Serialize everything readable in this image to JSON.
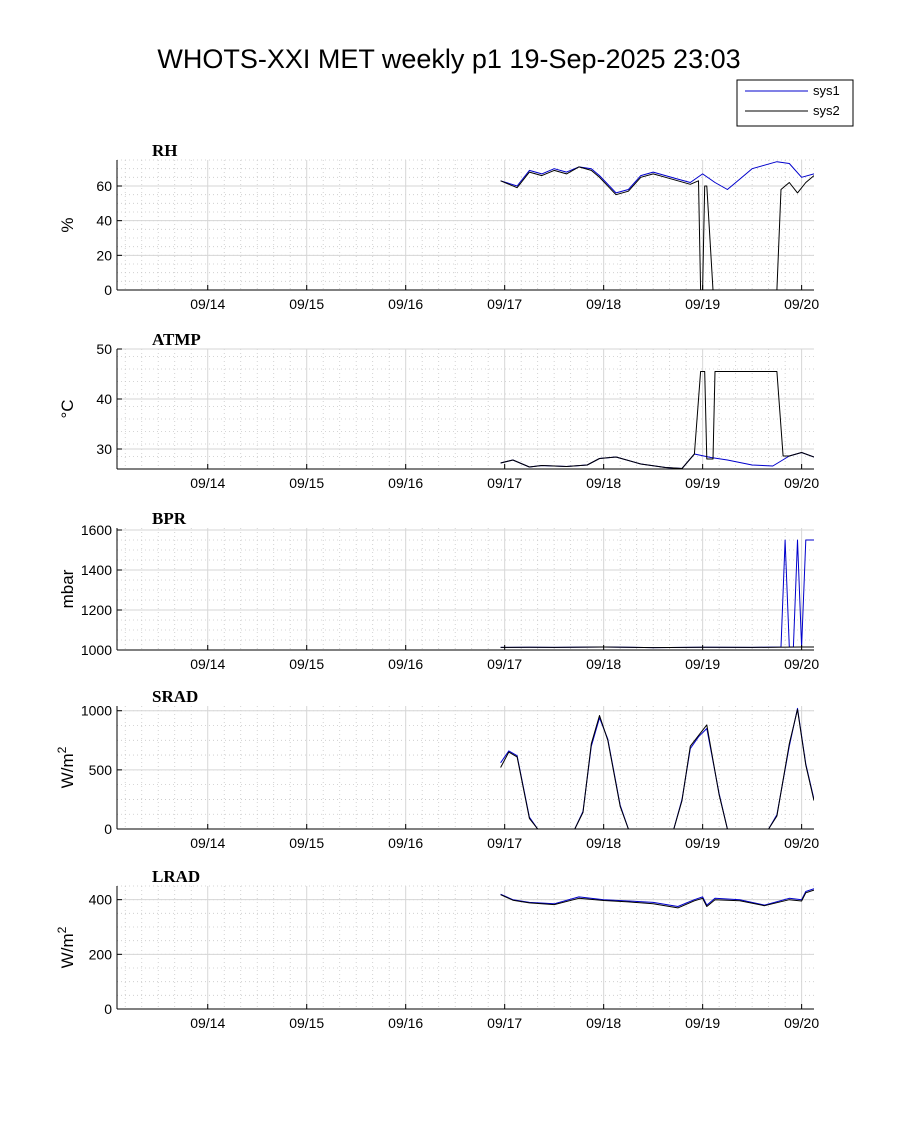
{
  "figure": {
    "title": "WHOTS-XXI MET weekly p1 19-Sep-2025 23:03",
    "legend": [
      {
        "name": "sys1",
        "color": "#0000cc"
      },
      {
        "name": "sys2",
        "color": "#000000"
      }
    ]
  },
  "chart_data": [
    {
      "type": "line",
      "title": "RH",
      "ylabel": "%",
      "ylabel_sup": "",
      "xlim": [
        "09/13 02:00",
        "09/20 03:00"
      ],
      "x_ticks": [
        "09/14",
        "09/15",
        "09/16",
        "09/17",
        "09/18",
        "09/19",
        "09/20"
      ],
      "ylim": [
        0,
        75
      ],
      "y_ticks": [
        0,
        20,
        40,
        60
      ],
      "grid": true,
      "legend_placement": "top-right",
      "series": [
        {
          "name": "sys1",
          "color": "#0000cc",
          "x": [
            "09/16 23:00",
            "09/17 03:00",
            "09/17 06:00",
            "09/17 09:00",
            "09/17 12:00",
            "09/17 15:00",
            "09/17 18:00",
            "09/17 21:00",
            "09/17 23:00",
            "09/18 03:00",
            "09/18 06:00",
            "09/18 09:00",
            "09/18 12:00",
            "09/18 15:00",
            "09/18 18:00",
            "09/18 21:00",
            "09/19 00:00",
            "09/19 03:00",
            "09/19 06:00",
            "09/19 09:00",
            "09/19 12:00",
            "09/19 15:00",
            "09/19 18:00",
            "09/19 21:00",
            "09/20 00:00",
            "09/20 03:00"
          ],
          "y": [
            63,
            60,
            69,
            67,
            70,
            68,
            71,
            70,
            66,
            56,
            58,
            66,
            68,
            66,
            64,
            62,
            67,
            62,
            58,
            64,
            70,
            72,
            74,
            73,
            65,
            67
          ]
        },
        {
          "name": "sys2",
          "color": "#000000",
          "x": [
            "09/16 23:00",
            "09/17 03:00",
            "09/17 06:00",
            "09/17 09:00",
            "09/17 12:00",
            "09/17 15:00",
            "09/17 18:00",
            "09/17 21:00",
            "09/17 23:00",
            "09/18 03:00",
            "09/18 06:00",
            "09/18 09:00",
            "09/18 12:00",
            "09/18 15:00",
            "09/18 18:00",
            "09/18 21:00",
            "09/18 23:00",
            "09/18 23:30",
            "09/19 00:00",
            "09/19 00:30",
            "09/19 01:00",
            "09/19 02:30",
            "09/19 03:00",
            "09/19 17:00",
            "09/19 18:00",
            "09/19 19:00",
            "09/19 21:00",
            "09/19 23:00",
            "09/20 01:00",
            "09/20 03:00"
          ],
          "y": [
            63,
            59,
            68,
            66,
            69,
            67,
            71,
            69,
            65,
            55,
            57,
            65,
            67,
            65,
            63,
            61,
            63,
            0,
            0,
            60,
            60,
            0,
            0,
            0,
            0,
            58,
            62,
            56,
            62,
            66
          ]
        }
      ]
    },
    {
      "type": "line",
      "title": "ATMP",
      "ylabel": "°C",
      "ylabel_sup": "",
      "xlim": [
        "09/13 02:00",
        "09/20 03:00"
      ],
      "x_ticks": [
        "09/14",
        "09/15",
        "09/16",
        "09/17",
        "09/18",
        "09/19",
        "09/20"
      ],
      "ylim": [
        26,
        50
      ],
      "y_ticks": [
        30,
        40,
        50
      ],
      "grid": true,
      "series": [
        {
          "name": "sys1",
          "color": "#0000cc",
          "x": [
            "09/16 23:00",
            "09/17 02:00",
            "09/17 06:00",
            "09/17 09:00",
            "09/17 15:00",
            "09/17 20:00",
            "09/17 23:00",
            "09/18 03:00",
            "09/18 09:00",
            "09/18 15:00",
            "09/18 19:00",
            "09/18 22:00",
            "09/19 02:00",
            "09/19 06:00",
            "09/19 12:00",
            "09/19 17:00",
            "09/19 21:00",
            "09/20 00:00",
            "09/20 03:00"
          ],
          "y": [
            27.2,
            27.8,
            26.4,
            26.7,
            26.5,
            26.8,
            28.1,
            28.4,
            27.0,
            26.3,
            26.1,
            29.0,
            28.3,
            27.8,
            26.8,
            26.6,
            28.6,
            29.3,
            28.4
          ]
        },
        {
          "name": "sys2",
          "color": "#000000",
          "x": [
            "09/16 23:00",
            "09/17 02:00",
            "09/17 06:00",
            "09/17 09:00",
            "09/17 15:00",
            "09/17 20:00",
            "09/17 23:00",
            "09/18 03:00",
            "09/18 09:00",
            "09/18 15:00",
            "09/18 19:00",
            "09/18 22:00",
            "09/18 23:30",
            "09/19 00:30",
            "09/19 01:00",
            "09/19 02:30",
            "09/19 03:00",
            "09/19 17:00",
            "09/19 18:00",
            "09/19 19:30",
            "09/19 21:00",
            "09/20 00:00",
            "09/20 03:00"
          ],
          "y": [
            27.2,
            27.8,
            26.4,
            26.7,
            26.5,
            26.8,
            28.1,
            28.4,
            27.0,
            26.3,
            26.1,
            29.0,
            45.5,
            45.5,
            28.0,
            28.0,
            45.5,
            45.5,
            45.5,
            28.6,
            28.6,
            29.3,
            28.4
          ]
        }
      ]
    },
    {
      "type": "line",
      "title": "BPR",
      "ylabel": "mbar",
      "ylabel_sup": "",
      "xlim": [
        "09/13 02:00",
        "09/20 03:00"
      ],
      "x_ticks": [
        "09/14",
        "09/15",
        "09/16",
        "09/17",
        "09/18",
        "09/19",
        "09/20"
      ],
      "ylim": [
        1000,
        1610
      ],
      "y_ticks": [
        1000,
        1200,
        1400,
        1600
      ],
      "grid": true,
      "series": [
        {
          "name": "sys1",
          "color": "#0000cc",
          "x": [
            "09/16 23:00",
            "09/17 06:00",
            "09/17 12:00",
            "09/18 00:00",
            "09/18 12:00",
            "09/19 00:00",
            "09/19 12:00",
            "09/19 19:00",
            "09/19 20:00",
            "09/19 21:00",
            "09/19 22:00",
            "09/19 23:00",
            "09/20 00:00",
            "09/20 01:00",
            "09/20 02:00",
            "09/20 03:00"
          ],
          "y": [
            1013,
            1014,
            1013,
            1015,
            1012,
            1014,
            1013,
            1015,
            1550,
            1015,
            1015,
            1550,
            1015,
            1550,
            1550,
            1550
          ]
        },
        {
          "name": "sys2",
          "color": "#000000",
          "x": [
            "09/16 23:00",
            "09/17 06:00",
            "09/17 12:00",
            "09/18 00:00",
            "09/18 12:00",
            "09/19 00:00",
            "09/19 12:00",
            "09/20 00:00",
            "09/20 03:00"
          ],
          "y": [
            1013,
            1014,
            1013,
            1015,
            1012,
            1014,
            1013,
            1015,
            1015
          ]
        }
      ]
    },
    {
      "type": "line",
      "title": "SRAD",
      "ylabel": "W/m",
      "ylabel_sup": "2",
      "xlim": [
        "09/13 02:00",
        "09/20 03:00"
      ],
      "x_ticks": [
        "09/14",
        "09/15",
        "09/16",
        "09/17",
        "09/18",
        "09/19",
        "09/20"
      ],
      "ylim": [
        0,
        1040
      ],
      "y_ticks": [
        0,
        500,
        1000
      ],
      "grid": true,
      "series": [
        {
          "name": "sys1",
          "color": "#0000cc",
          "x": [
            "09/16 23:00",
            "09/17 01:00",
            "09/17 03:00",
            "09/17 06:00",
            "09/17 08:00",
            "09/17 17:00",
            "09/17 19:00",
            "09/17 21:00",
            "09/17 23:00",
            "09/18 01:00",
            "09/18 04:00",
            "09/18 06:00",
            "09/18 17:00",
            "09/18 19:00",
            "09/18 21:00",
            "09/18 23:00",
            "09/19 01:00",
            "09/19 04:00",
            "09/19 06:00",
            "09/19 16:00",
            "09/19 18:00",
            "09/19 21:00",
            "09/19 23:00",
            "09/20 01:00",
            "09/20 03:00"
          ],
          "y": [
            560,
            660,
            620,
            100,
            0,
            0,
            150,
            700,
            940,
            760,
            200,
            0,
            0,
            250,
            680,
            780,
            850,
            300,
            0,
            0,
            120,
            700,
            1020,
            550,
            250
          ]
        },
        {
          "name": "sys2",
          "color": "#000000",
          "x": [
            "09/16 23:00",
            "09/17 01:00",
            "09/17 03:00",
            "09/17 06:00",
            "09/17 08:00",
            "09/17 17:00",
            "09/17 19:00",
            "09/17 21:00",
            "09/17 23:00",
            "09/18 01:00",
            "09/18 04:00",
            "09/18 06:00",
            "09/18 17:00",
            "09/18 19:00",
            "09/18 21:00",
            "09/18 23:00",
            "09/19 01:00",
            "09/19 04:00",
            "09/19 06:00",
            "09/19 16:00",
            "09/19 18:00",
            "09/19 21:00",
            "09/19 23:00",
            "09/20 01:00",
            "09/20 03:00"
          ],
          "y": [
            520,
            650,
            610,
            90,
            0,
            0,
            140,
            720,
            960,
            750,
            190,
            0,
            0,
            240,
            700,
            790,
            880,
            290,
            0,
            0,
            110,
            720,
            1010,
            540,
            240
          ]
        }
      ]
    },
    {
      "type": "line",
      "title": "LRAD",
      "ylabel": "W/m",
      "ylabel_sup": "2",
      "xlim": [
        "09/13 02:00",
        "09/20 03:00"
      ],
      "x_ticks": [
        "09/14",
        "09/15",
        "09/16",
        "09/17",
        "09/18",
        "09/19",
        "09/20"
      ],
      "ylim": [
        0,
        450
      ],
      "y_ticks": [
        0,
        200,
        400
      ],
      "grid": true,
      "series": [
        {
          "name": "sys1",
          "color": "#0000cc",
          "x": [
            "09/16 23:00",
            "09/17 02:00",
            "09/17 06:00",
            "09/17 12:00",
            "09/17 18:00",
            "09/18 00:00",
            "09/18 06:00",
            "09/18 12:00",
            "09/18 18:00",
            "09/18 22:00",
            "09/19 00:00",
            "09/19 01:00",
            "09/19 03:00",
            "09/19 09:00",
            "09/19 15:00",
            "09/19 21:00",
            "09/20 00:00",
            "09/20 01:00",
            "09/20 03:00"
          ],
          "y": [
            420,
            400,
            390,
            385,
            410,
            400,
            395,
            390,
            375,
            400,
            410,
            380,
            405,
            400,
            380,
            405,
            400,
            430,
            440
          ]
        },
        {
          "name": "sys2",
          "color": "#000000",
          "x": [
            "09/16 23:00",
            "09/17 02:00",
            "09/17 06:00",
            "09/17 12:00",
            "09/17 18:00",
            "09/18 00:00",
            "09/18 06:00",
            "09/18 12:00",
            "09/18 18:00",
            "09/18 22:00",
            "09/19 00:00",
            "09/19 01:00",
            "09/19 03:00",
            "09/19 09:00",
            "09/19 15:00",
            "09/19 21:00",
            "09/20 00:00",
            "09/20 01:00",
            "09/20 03:00"
          ],
          "y": [
            418,
            398,
            388,
            382,
            405,
            397,
            392,
            385,
            370,
            396,
            405,
            375,
            400,
            396,
            378,
            400,
            395,
            425,
            435
          ]
        }
      ]
    }
  ]
}
